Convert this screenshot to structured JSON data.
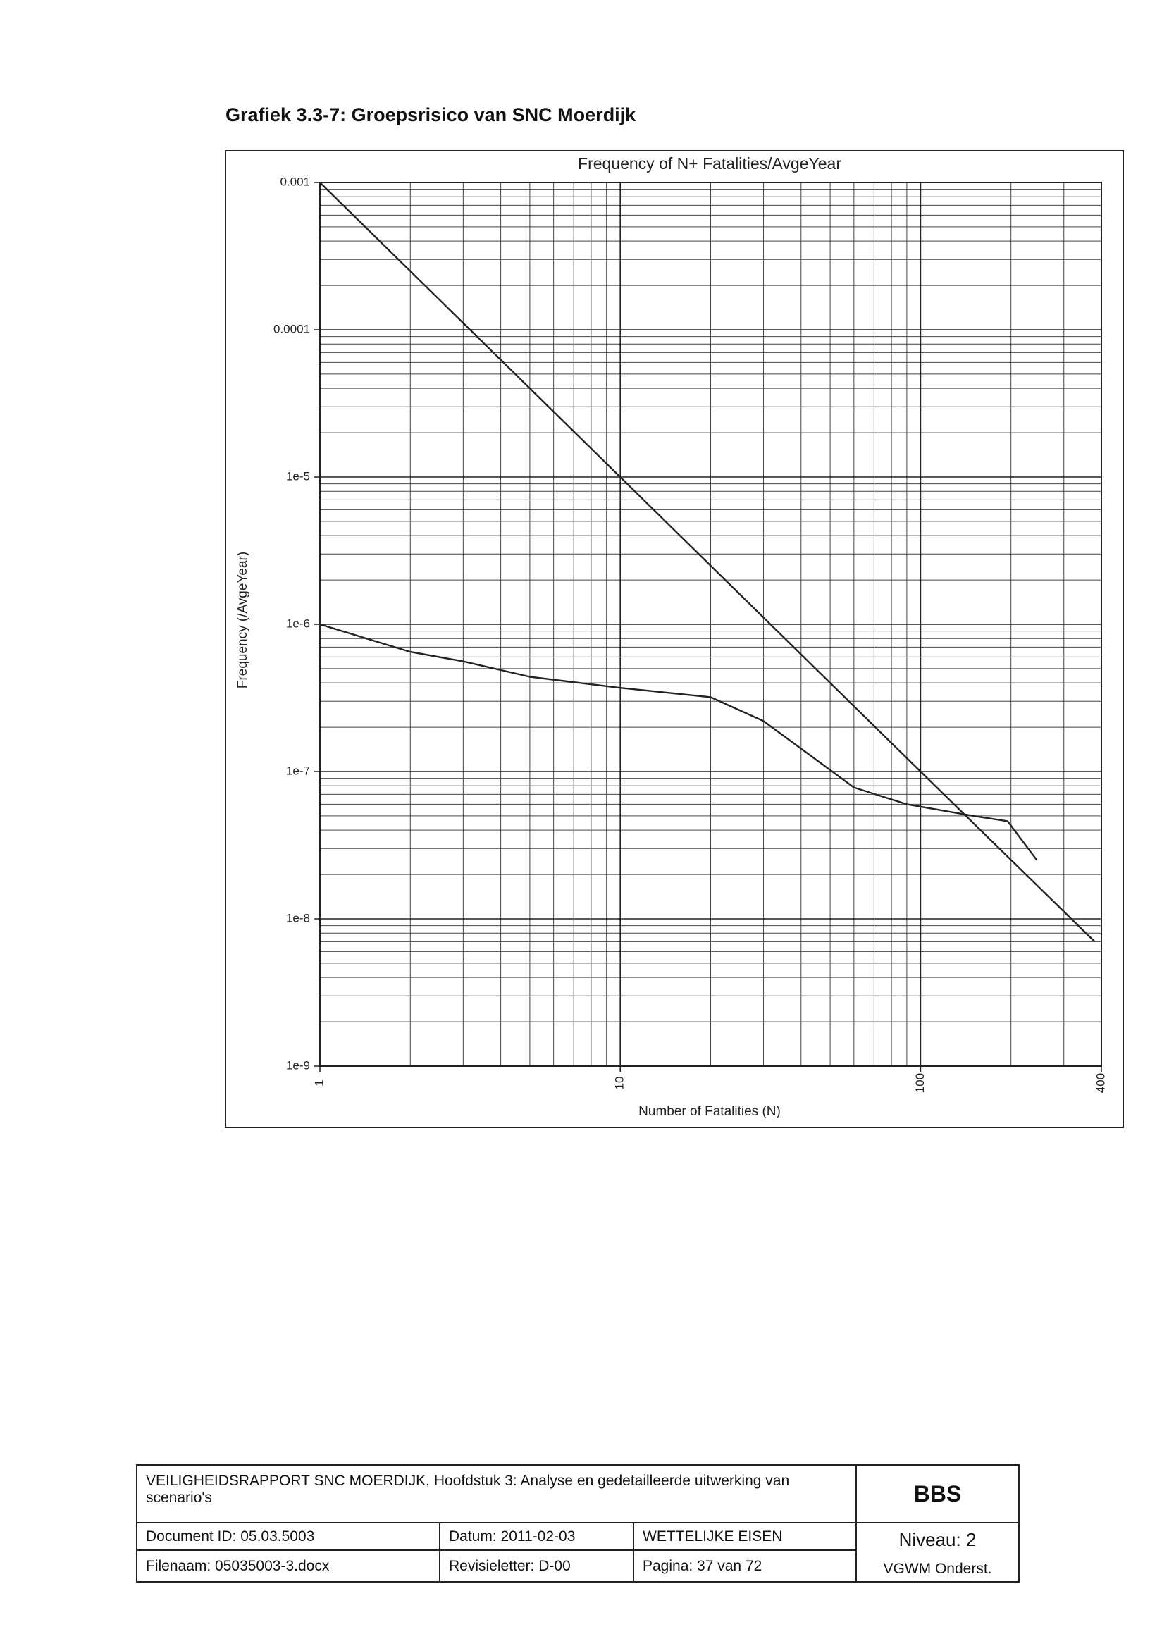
{
  "heading": "Grafiek 3.3-7: Groepsrisico van SNC Moerdijk",
  "chart_data": {
    "type": "line",
    "title": "Frequency of N+ Fatalities/AvgeYear",
    "x_label": "Number of Fatalities (N)",
    "y_label": "Frequency (/AvgeYear)",
    "log_x": true,
    "log_y": true,
    "grid": true,
    "minor_grid": true,
    "xlim": [
      1,
      400
    ],
    "ylim": [
      1e-09,
      0.001
    ],
    "xticks": [
      1,
      10,
      100,
      400
    ],
    "yticks": [
      0.001,
      0.0001,
      {
        "value": 1e-05,
        "label": "1e-5"
      },
      {
        "value": 1e-06,
        "label": "1e-6"
      },
      {
        "value": 1e-07,
        "label": "1e-7"
      },
      {
        "value": 1e-08,
        "label": "1e-8"
      },
      {
        "value": 1e-09,
        "label": "1e-9"
      }
    ],
    "series": [
      {
        "color": "#222222",
        "x": [
          1,
          10,
          100,
          380
        ],
        "values": [
          0.001,
          1e-05,
          1e-07,
          7e-09
        ]
      },
      {
        "color": "#222222",
        "x": [
          1,
          2,
          3,
          5,
          10,
          20,
          30,
          60,
          90,
          150,
          195,
          244
        ],
        "values": [
          1e-06,
          6.5e-07,
          5.6e-07,
          4.4e-07,
          3.7e-07,
          3.2e-07,
          2.2e-07,
          7.8e-08,
          6e-08,
          5e-08,
          4.6e-08,
          2.5e-08
        ]
      }
    ]
  },
  "footer": {
    "description": "VEILIGHEIDSRAPPORT SNC MOERDIJK, Hoofdstuk 3: Analyse en gedetailleerde uitwerking van scenario's",
    "company": "BBS",
    "document_id": "Document ID: 05.03.5003",
    "date": "Datum: 2011-02-03",
    "category": "WETTELIJKE EISEN",
    "level": "Niveau: 2",
    "filename": "Filenaam: 05035003-3.docx",
    "revision": "Revisieletter: D-00",
    "page": "Pagina: 37 van 72",
    "department": "VGWM Onderst."
  }
}
